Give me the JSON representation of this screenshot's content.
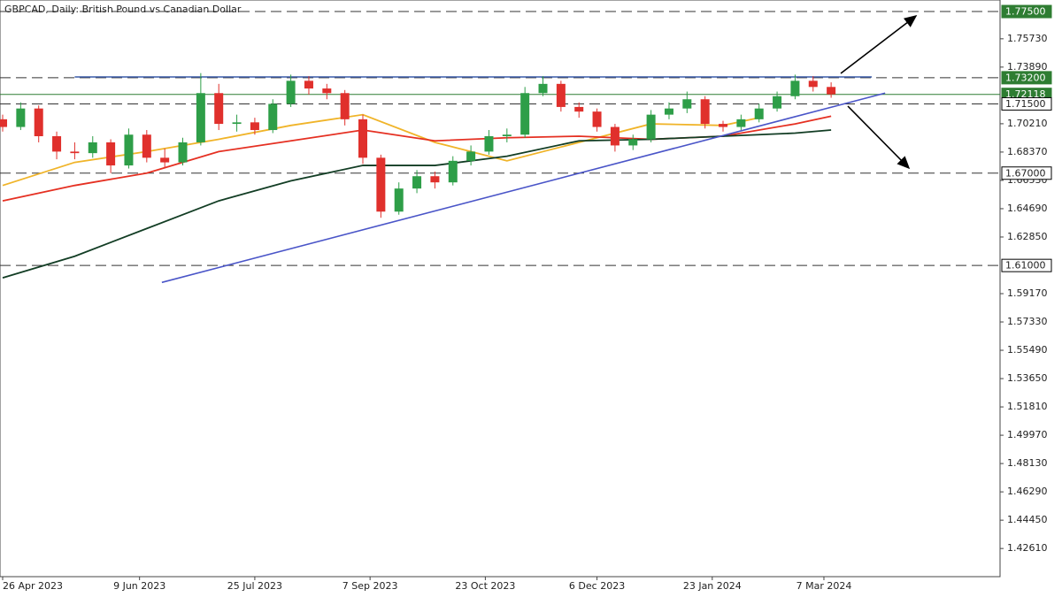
{
  "chart_data": {
    "type": "candlestick",
    "title": "GBPCAD, Daily:  British Pound vs Canadian Dollar",
    "xlim": [
      -0.74,
      276.9
    ],
    "ylim": [
      1.4078,
      1.7825
    ],
    "xticks": [
      {
        "value": 0,
        "label": "26 Apr 2023"
      },
      {
        "value": 38,
        "label": "9 Jun 2023"
      },
      {
        "value": 70,
        "label": "25 Jul 2023"
      },
      {
        "value": 102,
        "label": "7 Sep 2023"
      },
      {
        "value": 134,
        "label": "23 Oct 2023"
      },
      {
        "value": 165,
        "label": "6 Dec 2023"
      },
      {
        "value": 197,
        "label": "23 Jan 2024"
      },
      {
        "value": 228,
        "label": "7 Mar 2024"
      }
    ],
    "yticks": [
      {
        "value": 1.7573,
        "label": "1.75730"
      },
      {
        "value": 1.7389,
        "label": "1.73890"
      },
      {
        "value": 1.7021,
        "label": "1.70210"
      },
      {
        "value": 1.6837,
        "label": "1.68370"
      },
      {
        "value": 1.6653,
        "label": "1.66530"
      },
      {
        "value": 1.6469,
        "label": "1.64690"
      },
      {
        "value": 1.6285,
        "label": "1.62850"
      },
      {
        "value": 1.5917,
        "label": "1.59170"
      },
      {
        "value": 1.5733,
        "label": "1.57330"
      },
      {
        "value": 1.5549,
        "label": "1.55490"
      },
      {
        "value": 1.5365,
        "label": "1.53650"
      },
      {
        "value": 1.5181,
        "label": "1.51810"
      },
      {
        "value": 1.4997,
        "label": "1.49970"
      },
      {
        "value": 1.4813,
        "label": "1.48130"
      },
      {
        "value": 1.4629,
        "label": "1.46290"
      },
      {
        "value": 1.4445,
        "label": "1.44450"
      },
      {
        "value": 1.4261,
        "label": "1.42610"
      }
    ],
    "candles": {
      "up_color": "#2e9e48",
      "down_color": "#e0302c",
      "x": [
        0,
        5,
        10,
        15,
        20,
        25,
        30,
        35,
        40,
        45,
        50,
        55,
        60,
        65,
        70,
        75,
        80,
        85,
        90,
        95,
        100,
        105,
        110,
        115,
        120,
        125,
        130,
        135,
        140,
        145,
        150,
        155,
        160,
        165,
        170,
        175,
        180,
        185,
        190,
        195,
        200,
        205,
        210,
        215,
        220,
        225,
        230
      ],
      "open": [
        1.705,
        1.7,
        1.712,
        1.694,
        1.684,
        1.683,
        1.69,
        1.675,
        1.695,
        1.68,
        1.677,
        1.69,
        1.722,
        1.702,
        1.703,
        1.698,
        1.715,
        1.73,
        1.725,
        1.722,
        1.705,
        1.68,
        1.645,
        1.66,
        1.668,
        1.664,
        1.678,
        1.684,
        1.694,
        1.695,
        1.722,
        1.728,
        1.713,
        1.71,
        1.7,
        1.688,
        1.692,
        1.708,
        1.712,
        1.718,
        1.702,
        1.7,
        1.705,
        1.712,
        1.72,
        1.73,
        1.726
      ],
      "high": [
        1.708,
        1.716,
        1.714,
        1.697,
        1.69,
        1.694,
        1.692,
        1.699,
        1.698,
        1.686,
        1.693,
        1.735,
        1.728,
        1.708,
        1.706,
        1.718,
        1.734,
        1.733,
        1.728,
        1.724,
        1.708,
        1.682,
        1.664,
        1.672,
        1.671,
        1.681,
        1.688,
        1.698,
        1.699,
        1.726,
        1.733,
        1.73,
        1.716,
        1.712,
        1.702,
        1.695,
        1.711,
        1.716,
        1.723,
        1.72,
        1.704,
        1.708,
        1.715,
        1.723,
        1.734,
        1.733,
        1.729
      ],
      "low": [
        1.697,
        1.698,
        1.69,
        1.679,
        1.679,
        1.68,
        1.67,
        1.673,
        1.677,
        1.673,
        1.675,
        1.688,
        1.698,
        1.697,
        1.695,
        1.696,
        1.713,
        1.721,
        1.718,
        1.701,
        1.676,
        1.641,
        1.643,
        1.657,
        1.66,
        1.662,
        1.675,
        1.682,
        1.69,
        1.693,
        1.72,
        1.71,
        1.706,
        1.697,
        1.684,
        1.685,
        1.69,
        1.705,
        1.709,
        1.699,
        1.697,
        1.698,
        1.703,
        1.71,
        1.718,
        1.723,
        1.719
      ],
      "close": [
        1.7,
        1.712,
        1.694,
        1.684,
        1.683,
        1.69,
        1.675,
        1.695,
        1.68,
        1.677,
        1.69,
        1.722,
        1.702,
        1.703,
        1.698,
        1.715,
        1.73,
        1.725,
        1.722,
        1.705,
        1.68,
        1.645,
        1.66,
        1.668,
        1.664,
        1.678,
        1.684,
        1.694,
        1.695,
        1.722,
        1.728,
        1.713,
        1.71,
        1.7,
        1.688,
        1.692,
        1.708,
        1.712,
        1.718,
        1.702,
        1.7,
        1.705,
        1.712,
        1.72,
        1.73,
        1.726,
        1.7212
      ]
    },
    "lines": [
      {
        "color": "#f0b429",
        "x": [
          0,
          20,
          40,
          60,
          80,
          100,
          120,
          140,
          160,
          180,
          200,
          210
        ],
        "values": [
          1.662,
          1.677,
          1.684,
          1.692,
          1.701,
          1.708,
          1.69,
          1.678,
          1.69,
          1.702,
          1.701,
          1.706
        ]
      },
      {
        "color": "#e53022",
        "x": [
          0,
          20,
          40,
          60,
          80,
          100,
          120,
          140,
          160,
          180,
          200,
          220,
          230
        ],
        "values": [
          1.652,
          1.662,
          1.67,
          1.684,
          1.691,
          1.698,
          1.691,
          1.693,
          1.694,
          1.692,
          1.694,
          1.702,
          1.707
        ]
      },
      {
        "color": "#123d24",
        "x": [
          0,
          20,
          40,
          60,
          80,
          100,
          120,
          140,
          160,
          180,
          200,
          220,
          230
        ],
        "values": [
          1.602,
          1.616,
          1.634,
          1.652,
          1.665,
          1.675,
          1.675,
          1.681,
          1.691,
          1.692,
          1.694,
          1.696,
          1.698
        ]
      }
    ],
    "trendlines": [
      {
        "color": "#4a55c8",
        "x": [
          44.2,
          245
        ],
        "values": [
          1.599,
          1.722
        ]
      },
      {
        "color": "#3a5ba8",
        "x": [
          20,
          241.3
        ],
        "values": [
          1.7325,
          1.7325
        ]
      }
    ],
    "levels": [
      {
        "value": 1.775,
        "label": "1.77500",
        "box": "#2e7d32"
      },
      {
        "value": 1.732,
        "label": "1.73200",
        "box": "#2e7d32"
      },
      {
        "value": 1.715,
        "label": "1.71500",
        "box": "#ffffff"
      },
      {
        "value": 1.67,
        "label": "1.67000",
        "box": "#ffffff"
      },
      {
        "value": 1.61,
        "label": "1.61000",
        "box": "#ffffff"
      }
    ],
    "last_price": {
      "value": 1.72118,
      "label": "1.72118",
      "color": "#2e7d32"
    }
  }
}
